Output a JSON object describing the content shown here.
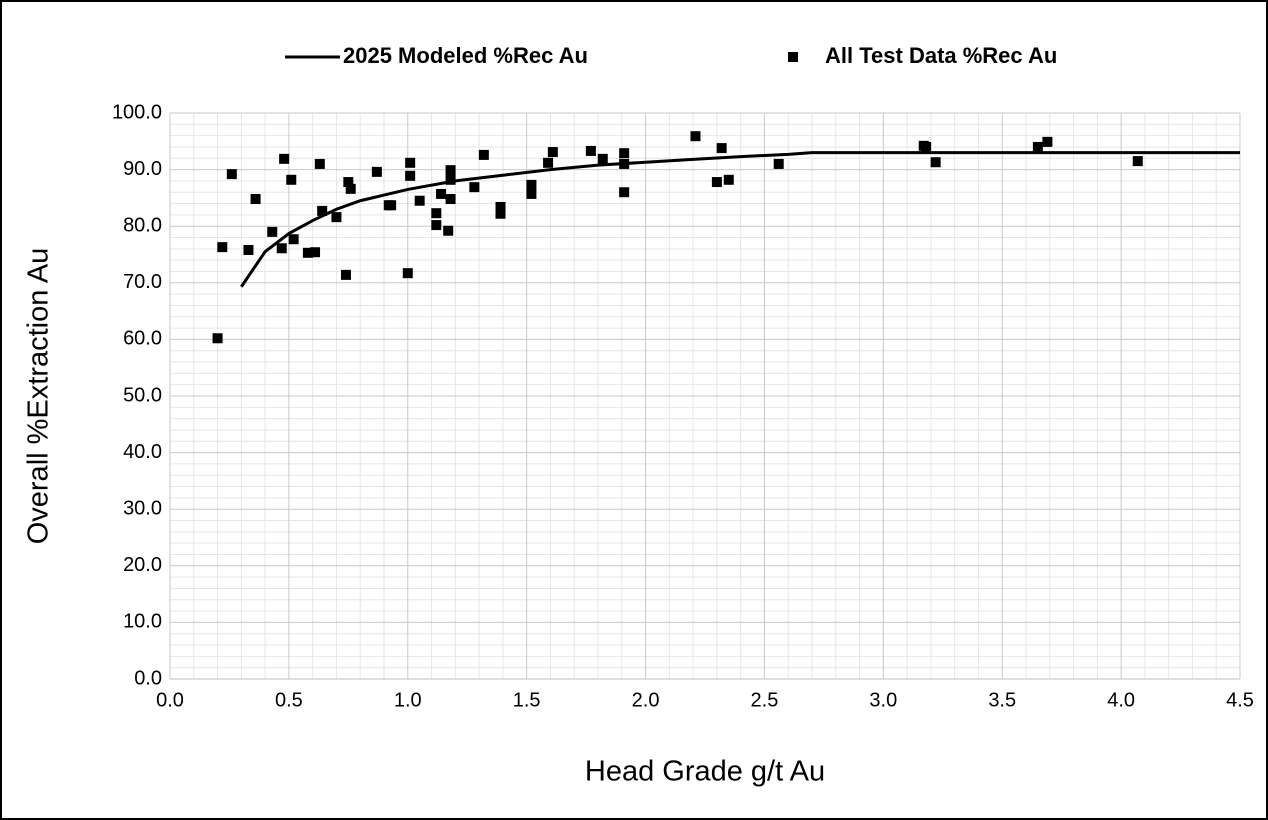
{
  "chart_data": {
    "type": "scatter",
    "xlabel": "Head Grade g/t Au",
    "ylabel": "Overall %Extraction Au",
    "xlim": [
      0,
      4.5
    ],
    "ylim": [
      0,
      100
    ],
    "xticks": [
      {
        "value": 0,
        "label": "0.0"
      },
      0.5,
      {
        "value": 1,
        "label": "1.0"
      },
      1.5,
      {
        "value": 2,
        "label": "2.0"
      },
      2.5,
      {
        "value": 3,
        "label": "3.0"
      },
      3.5,
      {
        "value": 4,
        "label": "4.0"
      },
      4.5
    ],
    "yticks": [
      {
        "value": 0,
        "label": "0.0"
      },
      {
        "value": 10,
        "label": "10.0"
      },
      {
        "value": 20,
        "label": "20.0"
      },
      {
        "value": 30,
        "label": "30.0"
      },
      {
        "value": 40,
        "label": "40.0"
      },
      {
        "value": 50,
        "label": "50.0"
      },
      {
        "value": 60,
        "label": "60.0"
      },
      {
        "value": 70,
        "label": "70.0"
      },
      {
        "value": 80,
        "label": "80.0"
      },
      {
        "value": 90,
        "label": "90.0"
      },
      {
        "value": 100,
        "label": "100.0"
      }
    ],
    "grid": true,
    "minor_grid": true,
    "legend": "top",
    "series": [
      {
        "name": "2025 Modeled %Rec Au",
        "type": "line",
        "color": "#000000",
        "x": [
          0.3,
          0.4,
          0.5,
          0.6,
          0.7,
          0.8,
          0.9,
          1.0,
          1.2,
          1.4,
          1.6,
          1.8,
          2.0,
          2.2,
          2.4,
          2.6,
          2.7,
          3.0,
          3.5,
          4.0,
          4.5
        ],
        "values": [
          69.3,
          75.5,
          78.7,
          81,
          83,
          84.5,
          85.5,
          86.5,
          88,
          89,
          90,
          90.8,
          91.3,
          91.8,
          92.3,
          92.7,
          93,
          93,
          93,
          93,
          93
        ]
      },
      {
        "name": "All Test Data %Rec Au",
        "type": "scatter",
        "color": "#000000",
        "x": [
          0.2,
          0.22,
          0.26,
          0.33,
          0.36,
          0.43,
          0.48,
          0.47,
          0.51,
          0.52,
          0.58,
          0.61,
          0.63,
          0.64,
          0.7,
          0.74,
          0.75,
          0.76,
          0.87,
          0.92,
          0.93,
          1.0,
          1.01,
          1.01,
          1.05,
          1.12,
          1.12,
          1.14,
          1.17,
          1.18,
          1.18,
          1.18,
          1.28,
          1.32,
          1.39,
          1.39,
          1.52,
          1.52,
          1.59,
          1.61,
          1.77,
          1.82,
          1.91,
          1.91,
          1.91,
          2.21,
          2.3,
          2.32,
          2.35,
          2.56,
          3.17,
          3.18,
          3.22,
          3.65,
          3.69,
          4.07
        ],
        "values": [
          60.2,
          76.3,
          89.2,
          75.8,
          84.8,
          79.0,
          91.9,
          76.1,
          88.2,
          77.7,
          75.3,
          75.4,
          91.0,
          82.7,
          81.6,
          71.4,
          87.8,
          86.6,
          89.6,
          83.7,
          83.7,
          71.7,
          88.9,
          91.2,
          84.5,
          82.3,
          80.2,
          85.7,
          79.2,
          89.9,
          88.2,
          84.8,
          86.9,
          92.6,
          83.4,
          82.2,
          87.3,
          85.7,
          91.2,
          93.1,
          93.3,
          91.9,
          92.9,
          91.0,
          86.0,
          95.9,
          87.8,
          93.8,
          88.2,
          91.0,
          94.2,
          94.0,
          91.3,
          94.0,
          94.9,
          91.5
        ]
      }
    ]
  }
}
